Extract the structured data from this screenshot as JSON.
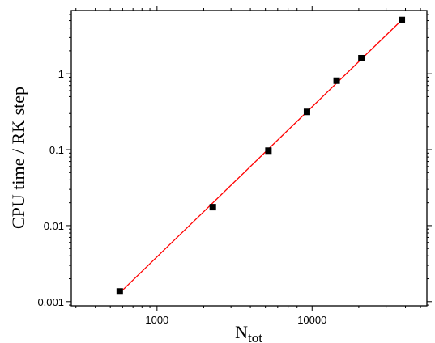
{
  "chart_data": {
    "type": "scatter",
    "x_scale": "log",
    "y_scale": "log",
    "xlabel": "N",
    "xlabel_subscript": "tot",
    "ylabel": "CPU time / RK step",
    "xlim": [
      280,
      55000
    ],
    "ylim": [
      0.00088,
      6.8
    ],
    "x_ticks": [
      {
        "value": 1000,
        "label": "1000"
      },
      {
        "value": 10000,
        "label": "10000"
      }
    ],
    "y_ticks": [
      {
        "value": 0.001,
        "label": "0.001"
      },
      {
        "value": 0.01,
        "label": "0.01"
      },
      {
        "value": 0.1,
        "label": "0.1"
      },
      {
        "value": 1,
        "label": "1"
      }
    ],
    "grid": false,
    "legend": "none",
    "series": [
      {
        "marker": "square",
        "color": "#000000",
        "points": [
          {
            "x": 575,
            "y": 0.00136
          },
          {
            "x": 2290,
            "y": 0.0175
          },
          {
            "x": 5230,
            "y": 0.097
          },
          {
            "x": 9270,
            "y": 0.315
          },
          {
            "x": 14400,
            "y": 0.81
          },
          {
            "x": 20800,
            "y": 1.6
          },
          {
            "x": 37900,
            "y": 5.1
          }
        ]
      }
    ],
    "fit_line": {
      "color": "#ff0000",
      "from": {
        "x": 575,
        "y": 0.0013
      },
      "to": {
        "x": 37900,
        "y": 5.1
      }
    }
  }
}
